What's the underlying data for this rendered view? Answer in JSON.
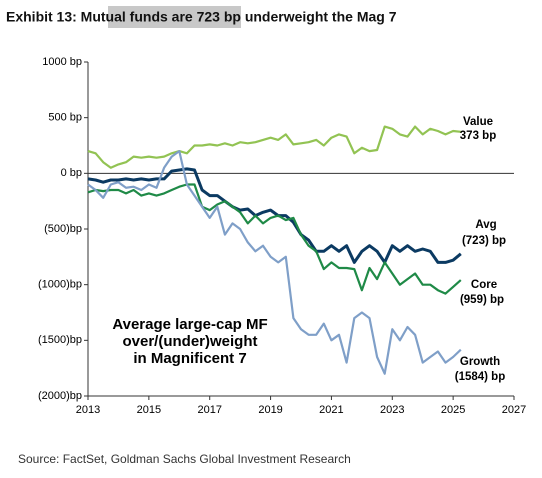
{
  "chart_data": {
    "type": "line",
    "title": "Exhibit 13: Mutual funds are 723 bp underweight the Mag 7",
    "annotation": [
      "Average large-cap MF",
      "over/(under)weight",
      "in Magnificent 7"
    ],
    "source": "Source: FactSet, Goldman Sachs Global Investment Research",
    "x": [
      2013,
      2013.25,
      2013.5,
      2013.75,
      2014,
      2014.25,
      2014.5,
      2014.75,
      2015,
      2015.25,
      2015.5,
      2015.75,
      2016,
      2016.25,
      2016.5,
      2016.75,
      2017,
      2017.25,
      2017.5,
      2017.75,
      2018,
      2018.25,
      2018.5,
      2018.75,
      2019,
      2019.25,
      2019.5,
      2019.75,
      2020,
      2020.25,
      2020.5,
      2020.75,
      2021,
      2021.25,
      2021.5,
      2021.75,
      2022,
      2022.25,
      2022.5,
      2022.75,
      2023,
      2023.25,
      2023.5,
      2023.75,
      2024,
      2024.25,
      2024.5,
      2024.75,
      2025,
      2025.25
    ],
    "series": [
      {
        "name": "Value",
        "end_label": "373 bp",
        "color": "#92c353",
        "values": [
          200,
          180,
          100,
          50,
          80,
          100,
          150,
          140,
          150,
          140,
          150,
          180,
          200,
          180,
          250,
          250,
          260,
          250,
          270,
          250,
          280,
          270,
          280,
          300,
          320,
          300,
          350,
          260,
          270,
          280,
          300,
          250,
          320,
          350,
          330,
          180,
          230,
          200,
          210,
          420,
          400,
          350,
          330,
          420,
          350,
          400,
          380,
          350,
          380,
          373
        ]
      },
      {
        "name": "Avg",
        "end_label": "(723)  bp",
        "color": "#0b3a62",
        "values": [
          -50,
          -60,
          -80,
          -60,
          -60,
          -50,
          -60,
          -50,
          -60,
          -50,
          -50,
          20,
          30,
          40,
          30,
          -150,
          -200,
          -200,
          -250,
          -300,
          -330,
          -320,
          -380,
          -350,
          -330,
          -380,
          -380,
          -440,
          -550,
          -600,
          -700,
          -700,
          -650,
          -700,
          -650,
          -800,
          -700,
          -650,
          -700,
          -800,
          -650,
          -700,
          -650,
          -700,
          -680,
          -700,
          -800,
          -800,
          -780,
          -723
        ]
      },
      {
        "name": "Core",
        "end_label": "(959) bp",
        "color": "#1f8a47",
        "values": [
          -170,
          -150,
          -160,
          -150,
          -150,
          -180,
          -150,
          -200,
          -180,
          -200,
          -180,
          -150,
          -120,
          -100,
          -100,
          -300,
          -330,
          -280,
          -250,
          -300,
          -350,
          -450,
          -380,
          -450,
          -400,
          -380,
          -420,
          -400,
          -550,
          -650,
          -700,
          -860,
          -800,
          -850,
          -850,
          -860,
          -1050,
          -850,
          -950,
          -800,
          -900,
          -1000,
          -950,
          -900,
          -1000,
          -1000,
          -1050,
          -1080,
          -1020,
          -959
        ]
      },
      {
        "name": "Growth",
        "end_label": "(1584) bp",
        "color": "#7f9fc8",
        "values": [
          -100,
          -150,
          -220,
          -100,
          -80,
          -130,
          -120,
          -150,
          -100,
          -130,
          50,
          150,
          200,
          -100,
          -200,
          -300,
          -400,
          -300,
          -550,
          -450,
          -500,
          -620,
          -700,
          -650,
          -750,
          -800,
          -750,
          -1300,
          -1400,
          -1450,
          -1450,
          -1350,
          -1500,
          -1450,
          -1700,
          -1300,
          -1250,
          -1300,
          -1650,
          -1800,
          -1400,
          -1500,
          -1380,
          -1450,
          -1700,
          -1650,
          -1600,
          -1700,
          -1650,
          -1584
        ]
      }
    ],
    "xlim": [
      2013,
      2027
    ],
    "xticks": [
      2013,
      2015,
      2017,
      2019,
      2021,
      2023,
      2025,
      2027
    ],
    "ylim": [
      -2000,
      1000
    ],
    "yticks": [
      {
        "value": -2000,
        "label": "(2000)bp"
      },
      {
        "value": -1500,
        "label": "(1500)bp"
      },
      {
        "value": -1000,
        "label": "(1000)bp"
      },
      {
        "value": -500,
        "label": "(500)bp"
      },
      {
        "value": 0,
        "label": "0 bp"
      },
      {
        "value": 500,
        "label": "500 bp"
      },
      {
        "value": 1000,
        "label": "1000 bp"
      }
    ]
  }
}
